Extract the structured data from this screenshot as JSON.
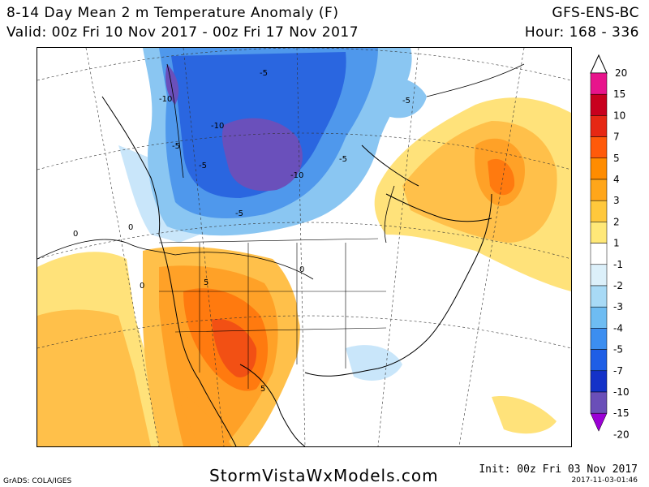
{
  "header": {
    "title": "8-14 Day Mean 2 m Temperature Anomaly (F)",
    "valid": "Valid: 00z Fri 10 Nov 2017 - 00z Fri 17 Nov 2017",
    "model": "GFS-ENS-BC",
    "hour": "Hour: 168 - 336"
  },
  "footer": {
    "site": "StormVistaWxModels.com",
    "grads": "GrADS: COLA/IGES",
    "init": "Init: 00z Fri 03 Nov 2017",
    "stamp": "2017-11-03-01:46"
  },
  "colorbar": {
    "top_label": "20",
    "labels": [
      "15",
      "10",
      "7",
      "5",
      "4",
      "3",
      "2",
      "1",
      "-1",
      "-2",
      "-3",
      "-4",
      "-5",
      "-7",
      "-10",
      "-15",
      "-20"
    ],
    "colors": [
      "#e8148c",
      "#c8001e",
      "#e62814",
      "#ff5a0a",
      "#ff8c00",
      "#ffa61a",
      "#ffc83c",
      "#ffe878",
      "#ffffff",
      "#dcf0fa",
      "#a8daf6",
      "#6ebcf2",
      "#3c8ef0",
      "#1e5ee6",
      "#1432c8",
      "#6a4fb8",
      "#9b00d6"
    ]
  },
  "map": {
    "contour_labels": [
      {
        "text": "-5"
      },
      {
        "text": "-5"
      },
      {
        "text": "-10"
      },
      {
        "text": "-10"
      },
      {
        "text": "-5"
      },
      {
        "text": "-5"
      },
      {
        "text": "-10"
      },
      {
        "text": "-5"
      },
      {
        "text": "-5"
      },
      {
        "text": "0"
      },
      {
        "text": "0"
      },
      {
        "text": "0"
      },
      {
        "text": "0"
      },
      {
        "text": "5"
      },
      {
        "text": "5"
      }
    ],
    "colors": {
      "warm_light": "#ffe27a",
      "warm": "#ffc04a",
      "warm_mid": "#ffa127",
      "hot": "#ff7a0f",
      "hotter": "#f25014",
      "cold_light": "#c9e6fa",
      "cold": "#8ac6f2",
      "cold_mid": "#4f98ec",
      "colder": "#2a66e0",
      "cold_dark": "#1c44c4",
      "cold_purple": "#6a50bb"
    }
  }
}
